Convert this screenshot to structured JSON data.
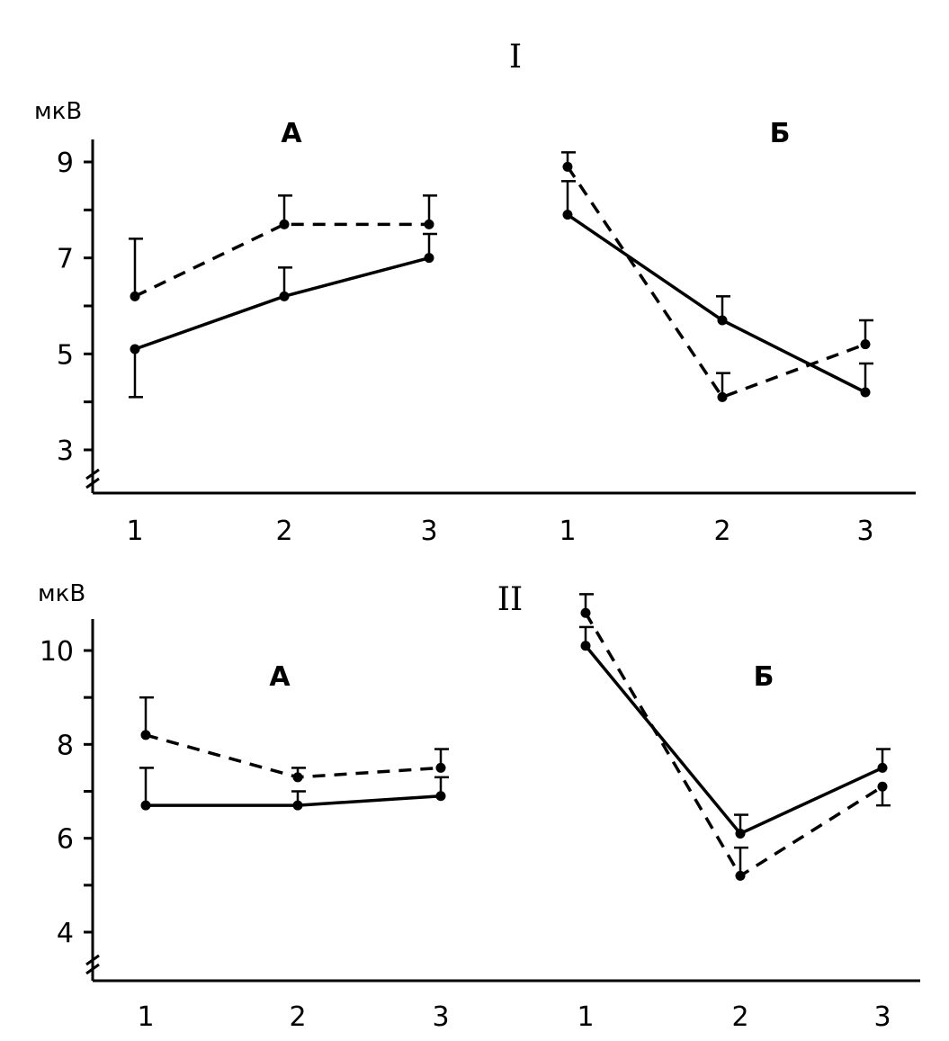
{
  "chart_data": [
    {
      "type": "line",
      "title": "I",
      "ylabel": "мкВ",
      "ylim": [
        2,
        9.6
      ],
      "yticks": [
        3,
        5,
        7,
        9
      ],
      "axis_break": true,
      "panels": [
        {
          "label": "А",
          "categories": [
            "1",
            "2",
            "3"
          ],
          "series": [
            {
              "style": "solid",
              "values": [
                5.1,
                6.2,
                7.0
              ],
              "err_up": [
                0,
                0.6,
                0.5
              ],
              "err_down": [
                1.0,
                0,
                0
              ]
            },
            {
              "style": "dashed",
              "values": [
                6.2,
                7.7,
                7.7
              ],
              "err_up": [
                1.2,
                0.6,
                0.6
              ],
              "err_down": [
                0,
                0,
                0
              ]
            }
          ]
        },
        {
          "label": "Б",
          "categories": [
            "1",
            "2",
            "3"
          ],
          "series": [
            {
              "style": "solid",
              "values": [
                7.9,
                5.7,
                4.2
              ],
              "err_up": [
                0.7,
                0.5,
                0.6
              ],
              "err_down": [
                0,
                0,
                0
              ]
            },
            {
              "style": "dashed",
              "values": [
                8.9,
                4.1,
                5.2
              ],
              "err_up": [
                0.3,
                0.5,
                0.5
              ],
              "err_down": [
                0,
                0,
                0
              ]
            }
          ]
        }
      ]
    },
    {
      "type": "line",
      "title": "II",
      "ylabel": "мкВ",
      "ylim": [
        3,
        10.8
      ],
      "yticks": [
        4,
        6,
        8,
        10
      ],
      "axis_break": true,
      "panels": [
        {
          "label": "А",
          "categories": [
            "1",
            "2",
            "3"
          ],
          "series": [
            {
              "style": "solid",
              "values": [
                6.7,
                6.7,
                6.9
              ],
              "err_up": [
                0.8,
                0.3,
                0.4
              ],
              "err_down": [
                0,
                0,
                0
              ]
            },
            {
              "style": "dashed",
              "values": [
                8.2,
                7.3,
                7.5
              ],
              "err_up": [
                0.8,
                0.2,
                0.4
              ],
              "err_down": [
                0,
                0,
                0
              ]
            }
          ]
        },
        {
          "label": "Б",
          "categories": [
            "1",
            "2",
            "3"
          ],
          "series": [
            {
              "style": "solid",
              "values": [
                10.1,
                6.1,
                7.5
              ],
              "err_up": [
                0.4,
                0.4,
                0.4
              ],
              "err_down": [
                0,
                0,
                0
              ]
            },
            {
              "style": "dashed",
              "values": [
                10.8,
                5.2,
                7.1
              ],
              "err_up": [
                0.4,
                0.6,
                0
              ],
              "err_down": [
                0,
                0,
                0.4
              ]
            }
          ]
        }
      ]
    }
  ]
}
